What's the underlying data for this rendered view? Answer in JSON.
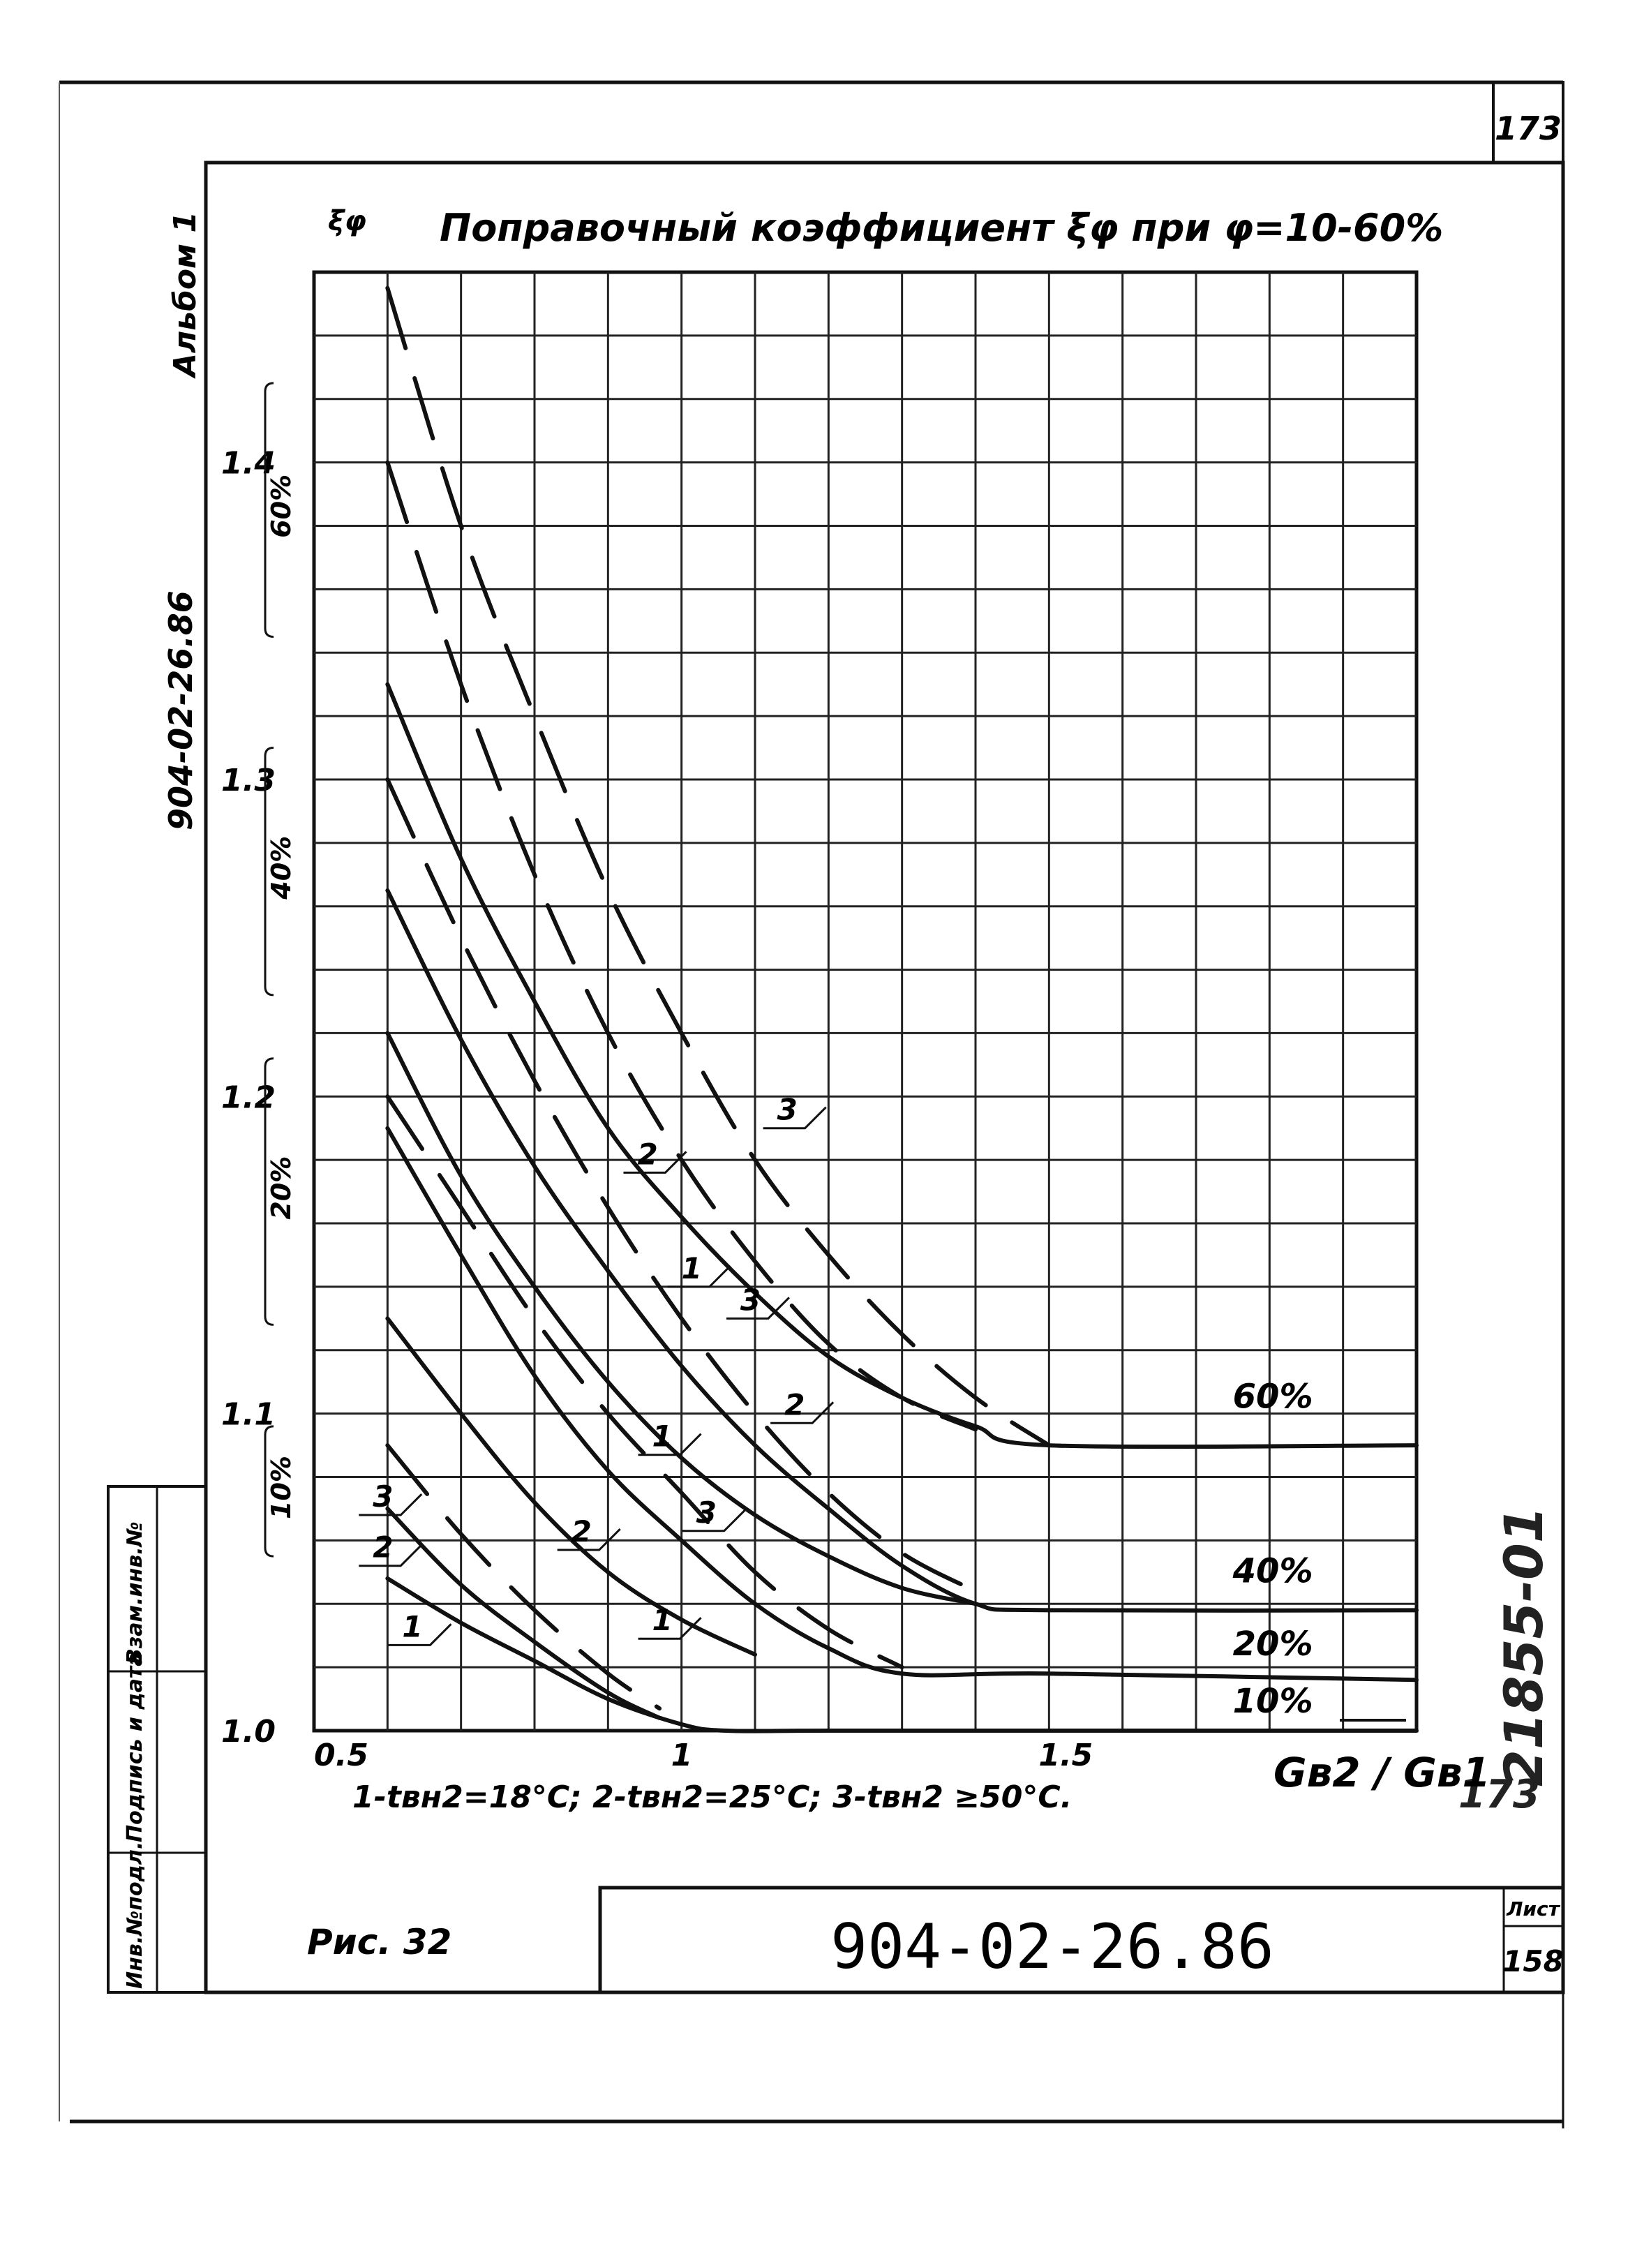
{
  "page": {
    "sheet_corner_number": "173",
    "album_label": "Альбом 1",
    "side_doc_code": "904-02-26.86",
    "figure_caption": "Рис. 32",
    "stamp_code": "904-02-26.86",
    "sheet_label": "Лист",
    "sheet_number": "158",
    "handwritten_code": "21855-01",
    "handwritten_number": "173",
    "margin_labels": [
      "Инв.№подл.",
      "Подпись и дата",
      "Взам.инв.№"
    ]
  },
  "chart_data": {
    "type": "line",
    "title": "Поправочный коэффициент ξφ при φ=10-60%",
    "ylabel": "ξφ",
    "xlabel": "Gв2 / Gв1",
    "xlim": [
      0.5,
      2.0
    ],
    "ylim": [
      1.0,
      1.46
    ],
    "x_ticks": [
      {
        "value": 0.5,
        "label": "0.5"
      },
      {
        "value": 1.0,
        "label": "1"
      },
      {
        "value": 1.5,
        "label": "1.5"
      }
    ],
    "y_ticks": [
      {
        "value": 1.0,
        "label": "1.0"
      },
      {
        "value": 1.1,
        "label": "1.1"
      },
      {
        "value": 1.2,
        "label": "1.2"
      },
      {
        "value": 1.3,
        "label": "1.3"
      },
      {
        "value": 1.4,
        "label": "1.4"
      }
    ],
    "grid": true,
    "legend_text": "1-tвн2=18°C; 2-tвн2=25°C; 3-tвн2 ≥50°C.",
    "series": [
      {
        "group": "10%",
        "curve": "1",
        "style": "solid",
        "x": [
          0.6,
          0.7,
          0.8,
          0.9,
          1.0,
          1.06,
          1.2,
          1.5,
          2.0
        ],
        "y": [
          1.048,
          1.034,
          1.022,
          1.01,
          1.002,
          1.0,
          1.0,
          1.0,
          1.0
        ]
      },
      {
        "group": "10%",
        "curve": "2",
        "style": "solid",
        "x": [
          0.6,
          0.7,
          0.8,
          0.9,
          0.97
        ],
        "y": [
          1.07,
          1.046,
          1.028,
          1.012,
          1.004
        ]
      },
      {
        "group": "10%",
        "curve": "3",
        "style": "dashed",
        "x": [
          0.6,
          0.7,
          0.8,
          0.9,
          0.97
        ],
        "y": [
          1.09,
          1.062,
          1.038,
          1.018,
          1.007
        ]
      },
      {
        "group": "20%",
        "curve": "1",
        "style": "solid",
        "x": [
          0.6,
          0.7,
          0.8,
          0.9,
          1.0,
          1.1
        ],
        "y": [
          1.13,
          1.1,
          1.072,
          1.05,
          1.035,
          1.024
        ]
      },
      {
        "group": "20%",
        "curve": "2",
        "style": "solid",
        "x": [
          0.6,
          0.7,
          0.8,
          0.9,
          1.0,
          1.1,
          1.2,
          1.3,
          1.5,
          2.0
        ],
        "y": [
          1.19,
          1.15,
          1.112,
          1.082,
          1.06,
          1.04,
          1.026,
          1.018,
          1.018,
          1.016
        ]
      },
      {
        "group": "20%",
        "curve": "3",
        "style": "dashed",
        "x": [
          0.6,
          0.7,
          0.8,
          0.9,
          1.0,
          1.1,
          1.2,
          1.3
        ],
        "y": [
          1.2,
          1.165,
          1.13,
          1.1,
          1.075,
          1.05,
          1.032,
          1.02
        ]
      },
      {
        "group": "40%",
        "curve": "1",
        "style": "solid",
        "x": [
          0.6,
          0.7,
          0.8,
          0.9,
          1.0,
          1.1,
          1.2,
          1.3,
          1.4
        ],
        "y": [
          1.22,
          1.175,
          1.14,
          1.11,
          1.086,
          1.068,
          1.055,
          1.045,
          1.04
        ]
      },
      {
        "group": "40%",
        "curve": "2",
        "style": "solid",
        "x": [
          0.6,
          0.7,
          0.8,
          0.9,
          1.0,
          1.1,
          1.2,
          1.3,
          1.4,
          1.5,
          2.0
        ],
        "y": [
          1.265,
          1.218,
          1.178,
          1.145,
          1.115,
          1.09,
          1.07,
          1.052,
          1.04,
          1.038,
          1.038
        ]
      },
      {
        "group": "40%",
        "curve": "3",
        "style": "dashed",
        "x": [
          0.6,
          0.7,
          0.8,
          0.9,
          1.0,
          1.1,
          1.2,
          1.3,
          1.4
        ],
        "y": [
          1.3,
          1.25,
          1.205,
          1.165,
          1.13,
          1.1,
          1.075,
          1.056,
          1.044
        ]
      },
      {
        "group": "60%",
        "curve": "1",
        "style": "solid",
        "x": [
          0.6,
          0.7,
          0.8,
          0.9,
          1.0,
          1.1,
          1.2,
          1.3,
          1.4,
          1.5,
          2.0
        ],
        "y": [
          1.33,
          1.275,
          1.23,
          1.19,
          1.162,
          1.138,
          1.118,
          1.105,
          1.096,
          1.09,
          1.09
        ]
      },
      {
        "group": "60%",
        "curve": "2",
        "style": "dashed",
        "x": [
          0.6,
          0.7,
          0.8,
          0.9,
          1.0,
          1.1,
          1.2,
          1.3,
          1.4
        ],
        "y": [
          1.4,
          1.33,
          1.27,
          1.22,
          1.18,
          1.148,
          1.122,
          1.105,
          1.095
        ]
      },
      {
        "group": "60%",
        "curve": "3",
        "style": "dashed",
        "x": [
          0.6,
          0.7,
          0.8,
          0.9,
          1.0,
          1.1,
          1.2,
          1.3,
          1.4,
          1.5
        ],
        "y": [
          1.455,
          1.38,
          1.32,
          1.265,
          1.22,
          1.18,
          1.15,
          1.125,
          1.105,
          1.09
        ]
      }
    ],
    "curve_number_labels": [
      {
        "text": "1",
        "x": 0.62,
        "y": 1.027
      },
      {
        "text": "2",
        "x": 0.58,
        "y": 1.052
      },
      {
        "text": "3",
        "x": 0.58,
        "y": 1.068
      },
      {
        "text": "2",
        "x": 0.85,
        "y": 1.057
      },
      {
        "text": "3",
        "x": 1.02,
        "y": 1.063
      },
      {
        "text": "1",
        "x": 0.96,
        "y": 1.029
      },
      {
        "text": "1",
        "x": 0.96,
        "y": 1.087
      },
      {
        "text": "3",
        "x": 1.08,
        "y": 1.13
      },
      {
        "text": "2",
        "x": 1.14,
        "y": 1.097
      },
      {
        "text": "1",
        "x": 1.0,
        "y": 1.14
      },
      {
        "text": "2",
        "x": 0.94,
        "y": 1.176
      },
      {
        "text": "3",
        "x": 1.13,
        "y": 1.19
      }
    ],
    "group_end_labels": [
      {
        "text": "60%",
        "x": 1.75,
        "y": 1.1
      },
      {
        "text": "40%",
        "x": 1.75,
        "y": 1.045
      },
      {
        "text": "20%",
        "x": 1.75,
        "y": 1.022
      },
      {
        "text": "10%",
        "x": 1.75,
        "y": 1.004
      }
    ],
    "group_bracket_labels": [
      {
        "text": "60%",
        "y_range": [
          1.345,
          1.425
        ]
      },
      {
        "text": "40%",
        "y_range": [
          1.232,
          1.31
        ]
      },
      {
        "text": "20%",
        "y_range": [
          1.128,
          1.212
        ]
      },
      {
        "text": "10%",
        "y_range": [
          1.055,
          1.096
        ]
      }
    ]
  }
}
